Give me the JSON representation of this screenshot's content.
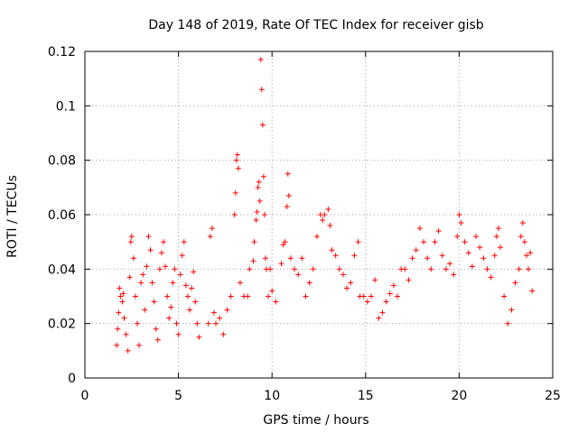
{
  "chart_data": {
    "type": "scatter",
    "title": "Day 148 of 2019, Rate Of TEC Index for receiver gisb",
    "xlabel": "GPS time / hours",
    "ylabel": "ROTI / TECUs",
    "xlim": [
      0,
      25
    ],
    "ylim": [
      0,
      0.12
    ],
    "xticks": [
      0,
      5,
      10,
      15,
      20,
      25
    ],
    "yticks": [
      0,
      0.02,
      0.04,
      0.06,
      0.08,
      0.1,
      0.12
    ],
    "xtick_labels": [
      "0",
      "5",
      "10",
      "15",
      "20",
      "25"
    ],
    "ytick_labels": [
      "0",
      "0.02",
      "0.04",
      "0.06",
      "0.08",
      "0.1",
      "0.12"
    ],
    "grid": true,
    "marker": "+",
    "colors": {
      "points": "#ff0000",
      "axes": "#000000",
      "grid": "#a0a0a0"
    },
    "series": [
      {
        "values": [
          [
            1.7,
            0.012
          ],
          [
            1.75,
            0.018
          ],
          [
            1.8,
            0.024
          ],
          [
            1.85,
            0.033
          ],
          [
            1.9,
            0.03
          ],
          [
            2.0,
            0.028
          ],
          [
            2.05,
            0.031
          ],
          [
            2.1,
            0.022
          ],
          [
            2.2,
            0.016
          ],
          [
            2.3,
            0.01
          ],
          [
            2.4,
            0.037
          ],
          [
            2.45,
            0.05
          ],
          [
            2.5,
            0.052
          ],
          [
            2.6,
            0.044
          ],
          [
            2.7,
            0.03
          ],
          [
            2.8,
            0.02
          ],
          [
            2.9,
            0.012
          ],
          [
            3.0,
            0.035
          ],
          [
            3.1,
            0.038
          ],
          [
            3.2,
            0.025
          ],
          [
            3.3,
            0.041
          ],
          [
            3.4,
            0.052
          ],
          [
            3.5,
            0.047
          ],
          [
            3.6,
            0.035
          ],
          [
            3.7,
            0.028
          ],
          [
            3.8,
            0.018
          ],
          [
            3.9,
            0.014
          ],
          [
            4.0,
            0.04
          ],
          [
            4.1,
            0.046
          ],
          [
            4.2,
            0.05
          ],
          [
            4.3,
            0.041
          ],
          [
            4.4,
            0.03
          ],
          [
            4.5,
            0.022
          ],
          [
            4.6,
            0.026
          ],
          [
            4.7,
            0.035
          ],
          [
            4.8,
            0.04
          ],
          [
            4.9,
            0.02
          ],
          [
            5.0,
            0.016
          ],
          [
            5.1,
            0.038
          ],
          [
            5.2,
            0.045
          ],
          [
            5.3,
            0.05
          ],
          [
            5.4,
            0.034
          ],
          [
            5.5,
            0.03
          ],
          [
            5.6,
            0.025
          ],
          [
            5.7,
            0.033
          ],
          [
            5.8,
            0.039
          ],
          [
            5.9,
            0.028
          ],
          [
            6.0,
            0.02
          ],
          [
            6.1,
            0.015
          ],
          [
            6.6,
            0.02
          ],
          [
            6.7,
            0.052
          ],
          [
            6.8,
            0.055
          ],
          [
            6.9,
            0.024
          ],
          [
            7.0,
            0.02
          ],
          [
            7.2,
            0.022
          ],
          [
            7.4,
            0.016
          ],
          [
            7.6,
            0.025
          ],
          [
            7.8,
            0.03
          ],
          [
            8.0,
            0.06
          ],
          [
            8.05,
            0.068
          ],
          [
            8.1,
            0.08
          ],
          [
            8.15,
            0.082
          ],
          [
            8.2,
            0.077
          ],
          [
            8.3,
            0.035
          ],
          [
            8.5,
            0.03
          ],
          [
            8.7,
            0.03
          ],
          [
            8.8,
            0.04
          ],
          [
            9.0,
            0.043
          ],
          [
            9.05,
            0.05
          ],
          [
            9.15,
            0.058
          ],
          [
            9.2,
            0.061
          ],
          [
            9.25,
            0.07
          ],
          [
            9.3,
            0.072
          ],
          [
            9.35,
            0.065
          ],
          [
            9.4,
            0.117
          ],
          [
            9.45,
            0.106
          ],
          [
            9.5,
            0.093
          ],
          [
            9.55,
            0.074
          ],
          [
            9.6,
            0.06
          ],
          [
            9.65,
            0.044
          ],
          [
            9.7,
            0.04
          ],
          [
            9.8,
            0.03
          ],
          [
            9.9,
            0.04
          ],
          [
            10.0,
            0.032
          ],
          [
            10.2,
            0.028
          ],
          [
            10.5,
            0.042
          ],
          [
            10.6,
            0.049
          ],
          [
            10.7,
            0.05
          ],
          [
            10.8,
            0.063
          ],
          [
            10.85,
            0.075
          ],
          [
            10.9,
            0.067
          ],
          [
            11.0,
            0.044
          ],
          [
            11.2,
            0.04
          ],
          [
            11.4,
            0.038
          ],
          [
            11.6,
            0.044
          ],
          [
            11.8,
            0.03
          ],
          [
            12.0,
            0.035
          ],
          [
            12.2,
            0.04
          ],
          [
            12.4,
            0.052
          ],
          [
            12.6,
            0.06
          ],
          [
            12.7,
            0.058
          ],
          [
            12.8,
            0.06
          ],
          [
            13.0,
            0.062
          ],
          [
            13.1,
            0.056
          ],
          [
            13.2,
            0.047
          ],
          [
            13.4,
            0.045
          ],
          [
            13.6,
            0.04
          ],
          [
            13.8,
            0.038
          ],
          [
            14.0,
            0.033
          ],
          [
            14.2,
            0.035
          ],
          [
            14.4,
            0.045
          ],
          [
            14.6,
            0.05
          ],
          [
            14.7,
            0.03
          ],
          [
            14.9,
            0.03
          ],
          [
            15.1,
            0.028
          ],
          [
            15.3,
            0.03
          ],
          [
            15.5,
            0.036
          ],
          [
            15.7,
            0.022
          ],
          [
            15.9,
            0.024
          ],
          [
            16.1,
            0.028
          ],
          [
            16.3,
            0.031
          ],
          [
            16.5,
            0.034
          ],
          [
            16.7,
            0.03
          ],
          [
            16.9,
            0.04
          ],
          [
            17.1,
            0.04
          ],
          [
            17.3,
            0.036
          ],
          [
            17.5,
            0.044
          ],
          [
            17.7,
            0.047
          ],
          [
            17.9,
            0.055
          ],
          [
            18.1,
            0.05
          ],
          [
            18.3,
            0.044
          ],
          [
            18.5,
            0.04
          ],
          [
            18.7,
            0.05
          ],
          [
            18.9,
            0.054
          ],
          [
            19.1,
            0.045
          ],
          [
            19.3,
            0.04
          ],
          [
            19.5,
            0.042
          ],
          [
            19.7,
            0.038
          ],
          [
            19.9,
            0.052
          ],
          [
            20.0,
            0.06
          ],
          [
            20.1,
            0.057
          ],
          [
            20.3,
            0.05
          ],
          [
            20.5,
            0.046
          ],
          [
            20.7,
            0.041
          ],
          [
            20.9,
            0.052
          ],
          [
            21.1,
            0.048
          ],
          [
            21.3,
            0.044
          ],
          [
            21.5,
            0.04
          ],
          [
            21.7,
            0.037
          ],
          [
            21.9,
            0.045
          ],
          [
            22.0,
            0.052
          ],
          [
            22.1,
            0.055
          ],
          [
            22.2,
            0.048
          ],
          [
            22.4,
            0.03
          ],
          [
            22.6,
            0.02
          ],
          [
            22.8,
            0.025
          ],
          [
            23.0,
            0.035
          ],
          [
            23.2,
            0.04
          ],
          [
            23.3,
            0.052
          ],
          [
            23.4,
            0.057
          ],
          [
            23.5,
            0.05
          ],
          [
            23.6,
            0.045
          ],
          [
            23.7,
            0.04
          ],
          [
            23.8,
            0.046
          ],
          [
            23.9,
            0.032
          ]
        ]
      }
    ]
  }
}
